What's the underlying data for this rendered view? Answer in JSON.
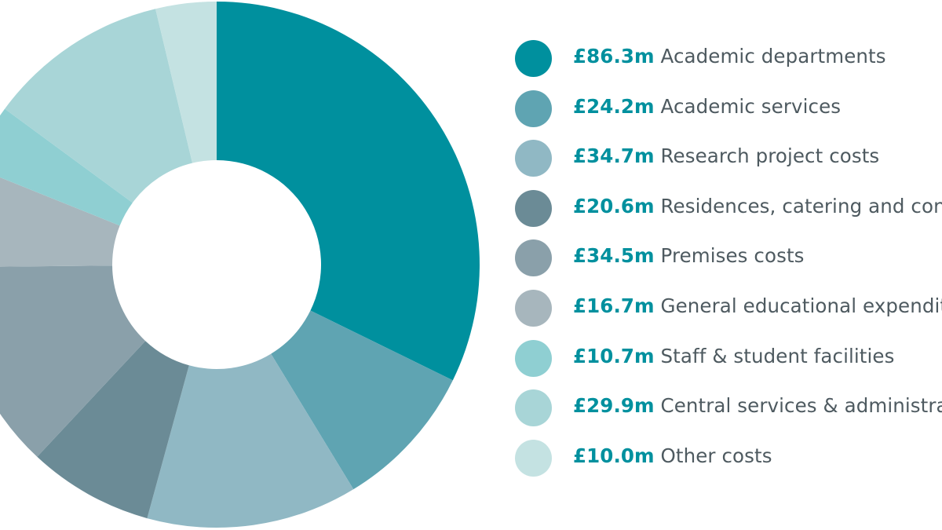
{
  "chart_data": {
    "type": "pie",
    "title": "",
    "categories": [
      "Academic departments",
      "Academic services",
      "Research project costs",
      "Residences, catering and conferences",
      "Premises costs",
      "General educational expenditure",
      "Staff & student facilities",
      "Central services & administration",
      "Other costs"
    ],
    "values": [
      86.3,
      24.2,
      34.7,
      20.6,
      34.5,
      16.7,
      10.7,
      29.9,
      10.0
    ],
    "value_labels": [
      "£86.3m",
      "£24.2m",
      "£34.7m",
      "£20.6m",
      "£34.5m",
      "£16.7m",
      "£10.7m",
      "£29.9m",
      "£10.0m"
    ],
    "legend_labels": [
      "Academic departments",
      "Academic services",
      "Research project costs",
      "Residences, catering and conferences",
      "Premises costs",
      "General educational expenditure",
      "Staff & student facilities",
      "Central services & administration",
      "Other costs"
    ],
    "colors": [
      "#00909e",
      "#5fa4b2",
      "#90b8c4",
      "#6b8b96",
      "#8aa0aa",
      "#a7b6bd",
      "#8fcfd2",
      "#a8d5d7",
      "#c4e2e2"
    ],
    "legend_placement": "right",
    "donut": true
  }
}
